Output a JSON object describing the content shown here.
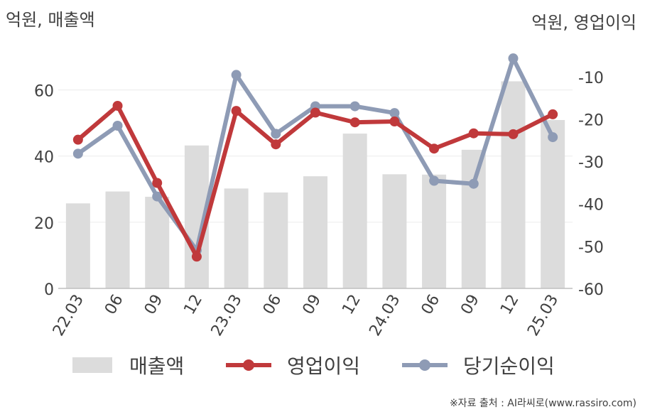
{
  "chart_data": {
    "type": "bar+line",
    "categories": [
      "22.03",
      "06",
      "09",
      "12",
      "23.03",
      "06",
      "09",
      "12",
      "24.03",
      "06",
      "09",
      "12",
      "25.03"
    ],
    "left_axis": {
      "label": "억원, 매출액",
      "ylim": [
        0,
        70
      ],
      "ticks": [
        0,
        20,
        40,
        60
      ]
    },
    "right_axis": {
      "label": "억원, 영업이익",
      "ylim": [
        -60,
        -5
      ],
      "ticks": [
        -60,
        -50,
        -40,
        -30,
        -20,
        -10
      ]
    },
    "series": [
      {
        "name": "매출액",
        "kind": "bar",
        "axis": "left",
        "color": "#dcdcdc",
        "values": [
          25.7,
          29.3,
          27.7,
          43.2,
          30.2,
          29.0,
          33.9,
          46.8,
          34.5,
          34.4,
          41.9,
          62.6,
          50.9
        ]
      },
      {
        "name": "영업이익",
        "kind": "line",
        "axis": "right",
        "color": "#c0393b",
        "values": [
          -24.9,
          -16.9,
          -35.1,
          -52.5,
          -18.1,
          -26.0,
          -18.5,
          -20.8,
          -20.6,
          -27.0,
          -23.4,
          -23.6,
          -18.9
        ]
      },
      {
        "name": "당기순이익",
        "kind": "line",
        "axis": "right",
        "color": "#8e9bb5",
        "values": [
          -28.2,
          -21.6,
          -38.3,
          -51.0,
          -9.6,
          -23.5,
          -17.0,
          -17.0,
          -18.6,
          -34.6,
          -35.3,
          -5.7,
          -24.3
        ]
      }
    ],
    "grid": true,
    "legend_position": "bottom"
  },
  "source_note": "※자료 출처 : AI라씨로(www.rassiro.com)"
}
